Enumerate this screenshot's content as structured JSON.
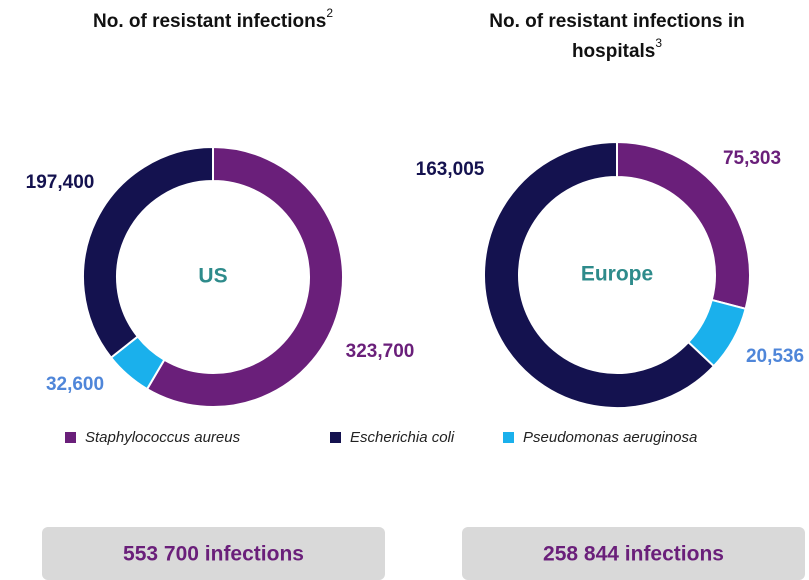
{
  "chart_data": [
    {
      "type": "donut",
      "title": [
        "No. of resistant infections"
      ],
      "title_superscript": "2",
      "center_label": "US",
      "values": [
        323700,
        197400,
        32600
      ],
      "value_labels": [
        "323,700",
        "197,400",
        "32,600"
      ],
      "total_label": "553 700 infections"
    },
    {
      "type": "donut",
      "title": [
        "No. of resistant infections in",
        "hospitals"
      ],
      "title_superscript": "3",
      "center_label": "Europe",
      "values": [
        75303,
        163005,
        20536
      ],
      "value_labels": [
        "75,303",
        "163,005",
        "20,536"
      ],
      "total_label": "258 844  infections"
    }
  ],
  "legend": {
    "labels": [
      "Staphylococcus aureus",
      "Escherichia coli",
      "Pseudomonas aeruginosa"
    ],
    "colors": [
      "#6a1f7a",
      "#14124f",
      "#1ab0ec"
    ],
    "label_colors": [
      "#6a1f7a",
      "#14124f",
      "#4f86d9"
    ],
    "text_colors": [
      "#222222",
      "#222222",
      "#1ab0ec"
    ]
  }
}
